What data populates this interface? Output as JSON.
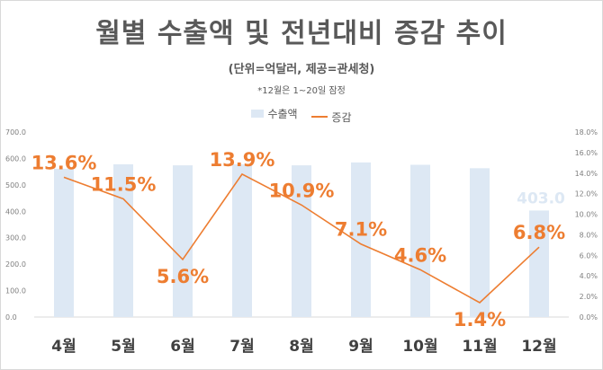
{
  "chart_data": {
    "type": "bar",
    "title": "월별 수출액 및 전년대비 증감 추이",
    "subtitle": "(단위=억달러, 제공=관세청)",
    "note": "*12월은 1~20일 잠정",
    "categories": [
      "4월",
      "5월",
      "6월",
      "7월",
      "8월",
      "9월",
      "10월",
      "11월",
      "12월"
    ],
    "series": [
      {
        "name": "수출액",
        "type": "bar",
        "axis": "left",
        "color": "#dde8f4",
        "values": [
          561,
          578,
          574,
          578,
          574,
          585,
          576,
          563,
          403
        ],
        "labels": [
          "",
          "",
          "",
          "",
          "",
          "",
          "",
          "",
          "403.0"
        ]
      },
      {
        "name": "증감",
        "type": "line",
        "axis": "right",
        "color": "#ed7d31",
        "values": [
          13.6,
          11.5,
          5.6,
          13.9,
          10.9,
          7.1,
          4.6,
          1.4,
          6.8
        ],
        "labels": [
          "13.6%",
          "11.5%",
          "5.6%",
          "13.9%",
          "10.9%",
          "7.1%",
          "4.6%",
          "1.4%",
          "6.8%"
        ]
      }
    ],
    "y_left": {
      "min": 0,
      "max": 700,
      "step": 100,
      "tick_labels": [
        "0.0",
        "100.0",
        "200.0",
        "300.0",
        "400.0",
        "500.0",
        "600.0",
        "700.0"
      ]
    },
    "y_right": {
      "min": 0,
      "max": 18,
      "step": 2,
      "tick_labels": [
        "0.0%",
        "2.0%",
        "4.0%",
        "6.0%",
        "8.0%",
        "10.0%",
        "12.0%",
        "14.0%",
        "16.0%",
        "18.0%"
      ]
    },
    "legend": {
      "position": "top"
    },
    "grid": false
  }
}
